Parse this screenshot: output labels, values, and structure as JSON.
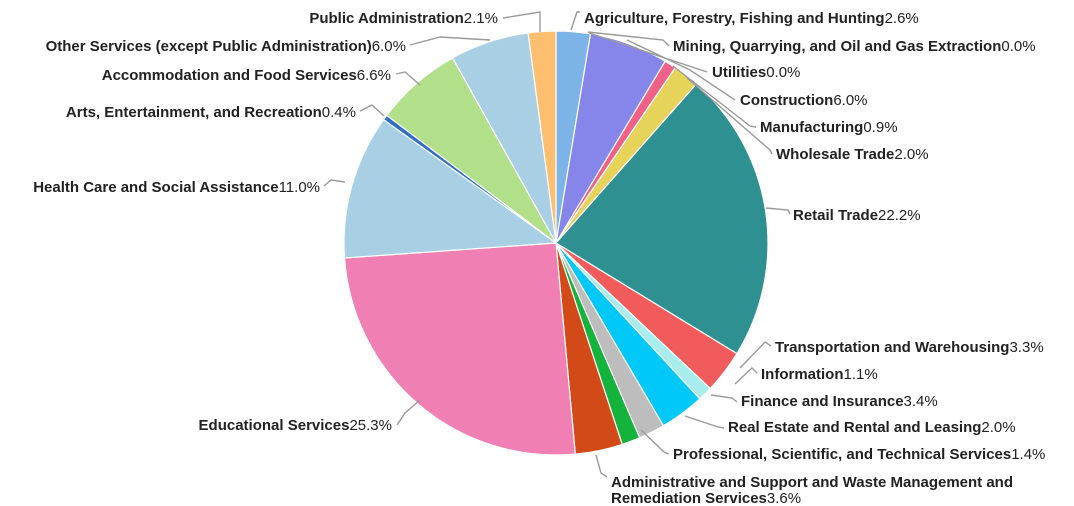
{
  "chart_data": {
    "type": "pie",
    "title": "",
    "slices": [
      {
        "name": "Agriculture, Forestry, Fishing and Hunting",
        "value": 2.6,
        "value_label": "2.6%",
        "color": "#7db4e8"
      },
      {
        "name": "Mining, Quarrying, and Oil and Gas Extraction",
        "value": 0.0,
        "value_label": "0.0%",
        "color": "#8a8cdc"
      },
      {
        "name": "Utilities",
        "value": 0.0,
        "value_label": "0.0%",
        "color": "#b9b9e6"
      },
      {
        "name": "Construction",
        "value": 6.0,
        "value_label": "6.0%",
        "color": "#8585ea"
      },
      {
        "name": "Manufacturing",
        "value": 0.9,
        "value_label": "0.9%",
        "color": "#f0618a"
      },
      {
        "name": "Wholesale Trade",
        "value": 2.0,
        "value_label": "2.0%",
        "color": "#e5d35a"
      },
      {
        "name": "Retail Trade",
        "value": 22.2,
        "value_label": "22.2%",
        "color": "#2e9090"
      },
      {
        "name": "Transportation and Warehousing",
        "value": 3.3,
        "value_label": "3.3%",
        "color": "#f25b5b"
      },
      {
        "name": "Information",
        "value": 1.1,
        "value_label": "1.1%",
        "color": "#a8eded"
      },
      {
        "name": "Finance and Insurance",
        "value": 3.4,
        "value_label": "3.4%",
        "color": "#00c8f8"
      },
      {
        "name": "Real Estate and Rental and Leasing",
        "value": 2.0,
        "value_label": "2.0%",
        "color": "#bdbdbd"
      },
      {
        "name": "Professional, Scientific, and Technical Services",
        "value": 1.4,
        "value_label": "1.4%",
        "color": "#14b43c"
      },
      {
        "name": "Administrative and Support and Waste Management and Remediation Services",
        "value": 3.6,
        "value_label": "3.6%",
        "color": "#d14a18"
      },
      {
        "name": "Educational Services",
        "value": 25.3,
        "value_label": "25.3%",
        "color": "#f07fb3"
      },
      {
        "name": "Health Care and Social Assistance",
        "value": 11.0,
        "value_label": "11.0%",
        "color": "#a8cfe3"
      },
      {
        "name": "Arts, Entertainment, and Recreation",
        "value": 0.4,
        "value_label": "0.4%",
        "color": "#2f6fbf"
      },
      {
        "name": "Accommodation and Food Services",
        "value": 6.6,
        "value_label": "6.6%",
        "color": "#b2df8a"
      },
      {
        "name": "Other Services (except Public Administration)",
        "value": 6.0,
        "value_label": "6.0%",
        "color": "#a8cfe3"
      },
      {
        "name": "Public Administration",
        "value": 2.1,
        "value_label": "2.1%",
        "color": "#fdbf6f"
      }
    ]
  }
}
